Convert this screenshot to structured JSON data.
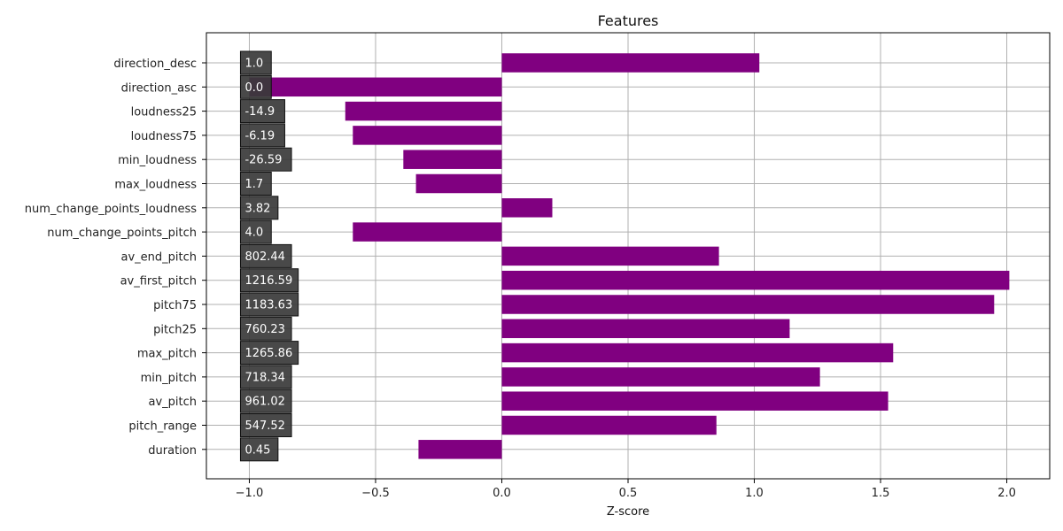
{
  "chart_data": {
    "type": "bar",
    "orientation": "horizontal",
    "title": "Features",
    "xlabel": "Z-score",
    "ylabel": "",
    "xlim": [
      -1.17,
      2.17
    ],
    "xticks": [
      -1.0,
      -0.5,
      0.0,
      0.5,
      1.0,
      1.5,
      2.0
    ],
    "xtick_labels": [
      "−1.0",
      "−0.5",
      "0.0",
      "0.5",
      "1.0",
      "1.5",
      "2.0"
    ],
    "grid": true,
    "bar_color": "#800080",
    "label_box_color": "#3a3a3a",
    "categories": [
      "direction_desc",
      "direction_asc",
      "loudness25",
      "loudness75",
      "min_loudness",
      "max_loudness",
      "num_change_points_loudness",
      "num_change_points_pitch",
      "av_end_pitch",
      "av_first_pitch",
      "pitch75",
      "pitch25",
      "max_pitch",
      "min_pitch",
      "av_pitch",
      "pitch_range",
      "duration"
    ],
    "values": [
      1.02,
      -1.0,
      -0.62,
      -0.59,
      -0.39,
      -0.34,
      0.2,
      -0.59,
      0.86,
      2.01,
      1.95,
      1.14,
      1.55,
      1.26,
      1.53,
      0.85,
      -0.33
    ],
    "raw_value_labels": [
      "1.0",
      "0.0",
      "-14.9",
      "-6.19",
      "-26.59",
      "1.7",
      "3.82",
      "4.0",
      "802.44",
      "1216.59",
      "1183.63",
      "760.23",
      "1265.86",
      "718.34",
      "961.02",
      "547.52",
      "0.45"
    ]
  }
}
